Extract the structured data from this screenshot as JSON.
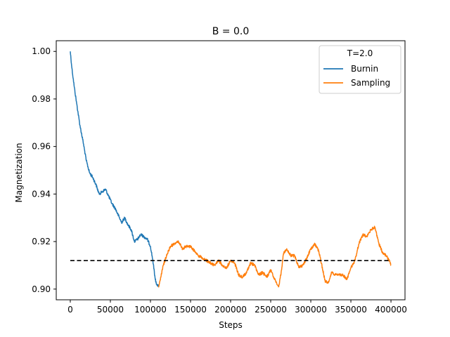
{
  "chart_data": {
    "type": "line",
    "title": "B = 0.0",
    "xlabel": "Steps",
    "ylabel": "Magnetization",
    "xlim": [
      -17500,
      417500
    ],
    "ylim": [
      0.8955,
      1.0045
    ],
    "xticks": [
      0,
      50000,
      100000,
      150000,
      200000,
      250000,
      300000,
      350000,
      400000
    ],
    "xtick_labels": [
      "0",
      "50000",
      "100000",
      "150000",
      "200000",
      "250000",
      "300000",
      "350000",
      "400000"
    ],
    "yticks": [
      0.9,
      0.92,
      0.94,
      0.96,
      0.98,
      1.0
    ],
    "ytick_labels": [
      "0.90",
      "0.92",
      "0.94",
      "0.96",
      "0.98",
      "1.00"
    ],
    "grid": false,
    "legend": {
      "title": "T=2.0",
      "position": "top-right"
    },
    "series": [
      {
        "name": "Burnin",
        "color": "#1f77b4",
        "x": [
          0,
          2000,
          5000,
          8000,
          12000,
          16000,
          20000,
          24000,
          28000,
          32000,
          36000,
          40000,
          44000,
          48000,
          52000,
          56000,
          60000,
          64000,
          68000,
          72000,
          76000,
          80000,
          84000,
          88000,
          92000,
          96000,
          100000,
          103000,
          106000,
          108000,
          110000
        ],
        "y": [
          1.0,
          0.993,
          0.985,
          0.978,
          0.969,
          0.962,
          0.954,
          0.949,
          0.947,
          0.944,
          0.94,
          0.941,
          0.942,
          0.939,
          0.936,
          0.934,
          0.931,
          0.928,
          0.93,
          0.927,
          0.925,
          0.92,
          0.921,
          0.923,
          0.922,
          0.921,
          0.918,
          0.912,
          0.904,
          0.902,
          0.901
        ]
      },
      {
        "name": "Sampling",
        "color": "#ff7f0e",
        "x": [
          110000,
          113000,
          116000,
          120000,
          125000,
          130000,
          135000,
          140000,
          145000,
          150000,
          155000,
          160000,
          165000,
          170000,
          175000,
          180000,
          185000,
          190000,
          195000,
          200000,
          205000,
          210000,
          215000,
          220000,
          225000,
          230000,
          235000,
          240000,
          245000,
          250000,
          255000,
          260000,
          263000,
          266000,
          270000,
          275000,
          280000,
          285000,
          290000,
          295000,
          300000,
          305000,
          310000,
          315000,
          318000,
          322000,
          326000,
          330000,
          335000,
          340000,
          345000,
          350000,
          355000,
          360000,
          365000,
          370000,
          375000,
          380000,
          385000,
          390000,
          395000,
          400000
        ],
        "y": [
          0.901,
          0.905,
          0.91,
          0.914,
          0.918,
          0.919,
          0.92,
          0.917,
          0.918,
          0.918,
          0.916,
          0.914,
          0.913,
          0.912,
          0.911,
          0.91,
          0.912,
          0.91,
          0.909,
          0.912,
          0.911,
          0.906,
          0.905,
          0.907,
          0.911,
          0.91,
          0.906,
          0.907,
          0.905,
          0.908,
          0.904,
          0.901,
          0.907,
          0.915,
          0.917,
          0.914,
          0.914,
          0.909,
          0.91,
          0.913,
          0.917,
          0.919,
          0.916,
          0.908,
          0.903,
          0.903,
          0.907,
          0.906,
          0.906,
          0.906,
          0.904,
          0.909,
          0.912,
          0.919,
          0.923,
          0.922,
          0.925,
          0.926,
          0.919,
          0.915,
          0.914,
          0.91
        ]
      }
    ],
    "reference_line": {
      "y": 0.912,
      "x": [
        0,
        400000
      ],
      "style": "dashed",
      "color": "#000000"
    }
  }
}
